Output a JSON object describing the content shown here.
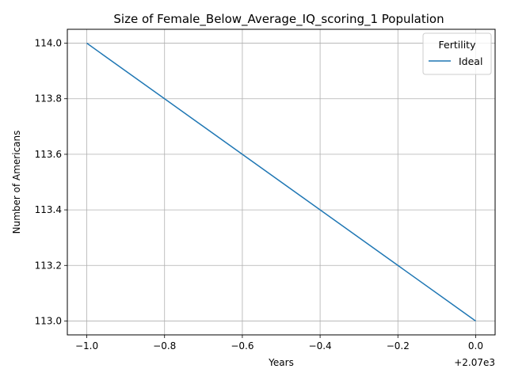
{
  "chart_data": {
    "type": "line",
    "title": "Size of Female_Below_Average_IQ_scoring_1 Population",
    "xlabel": "Years",
    "ylabel": "Number of Americans",
    "x_offset_label": "+2.07e3",
    "grid": true,
    "xlim": [
      -1.05,
      0.05
    ],
    "ylim": [
      112.95,
      114.05
    ],
    "x_ticks": [
      -1.0,
      -0.8,
      -0.6,
      -0.4,
      -0.2,
      0.0
    ],
    "x_tick_labels": [
      "−1.0",
      "−0.8",
      "−0.6",
      "−0.4",
      "−0.2",
      "0.0"
    ],
    "y_ticks": [
      113.0,
      113.2,
      113.4,
      113.6,
      113.8,
      114.0
    ],
    "y_tick_labels": [
      "113.0",
      "113.2",
      "113.4",
      "113.6",
      "113.8",
      "114.0"
    ],
    "legend_title": "Fertility",
    "legend_position": "top-right",
    "series": [
      {
        "name": "Ideal",
        "color": "#1f77b4",
        "x": [
          -1.0,
          0.0
        ],
        "y": [
          114.0,
          113.0
        ]
      }
    ]
  }
}
